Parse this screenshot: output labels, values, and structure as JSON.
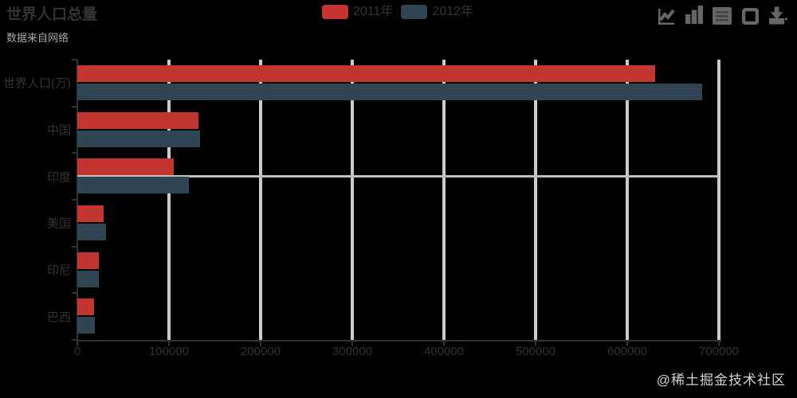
{
  "page": {
    "background_color": "#000000"
  },
  "title": {
    "text": "世界人口总量",
    "subtext": "数据来自网络",
    "text_color": "#333333",
    "subtext_color": "#aaaaaa"
  },
  "legend": {
    "text_color": "#333333",
    "items": [
      {
        "label": "2011年",
        "color": "#c23531"
      },
      {
        "label": "2012年",
        "color": "#2f4554"
      }
    ]
  },
  "toolbox": {
    "icon_color": "#666666",
    "icons": [
      "magic-type-line",
      "magic-type-bar",
      "data-view",
      "restore",
      "save-as-image"
    ]
  },
  "watermark": {
    "text": "@稀土掘金技术社区",
    "color": "#d4d4d4"
  },
  "chart_data": {
    "type": "bar",
    "orientation": "horizontal",
    "title": "世界人口总量",
    "subtitle": "数据来自网络",
    "categories_top_to_bottom": [
      "世界人口(万)",
      "中国",
      "印度",
      "美国",
      "印尼",
      "巴西"
    ],
    "series": [
      {
        "name": "2011年",
        "color": "#c23531",
        "values": [
          630230,
          131744,
          104970,
          29034,
          23489,
          18203
        ]
      },
      {
        "name": "2012年",
        "color": "#2f4554",
        "values": [
          681807,
          134141,
          121594,
          31000,
          23438,
          19325
        ]
      }
    ],
    "xlabel": "",
    "ylabel": "",
    "xlim": [
      0,
      700000
    ],
    "x_ticks": [
      0,
      100000,
      200000,
      300000,
      400000,
      500000,
      600000,
      700000
    ],
    "grid": true,
    "gridline_color": "#cccccc",
    "axis_color": "#333333",
    "axis_pointer_category": "印度",
    "axis_pointer_color": "#bfbfbf",
    "legend_position": "top-center"
  }
}
